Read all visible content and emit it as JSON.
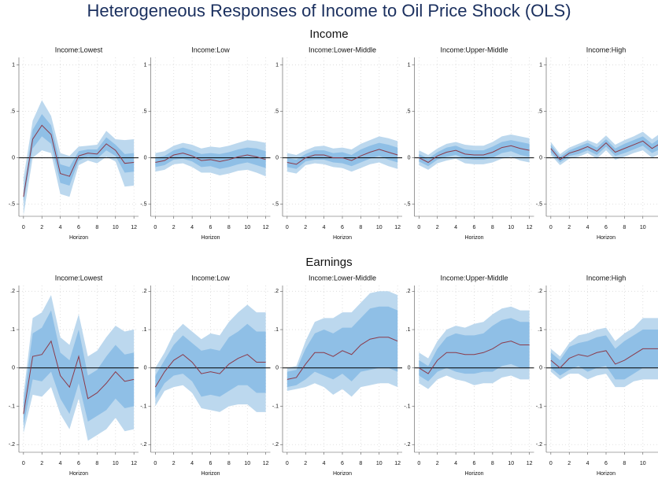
{
  "title": "Heterogeneous Responses of Income to Oil Price Shock (OLS)",
  "section_titles": [
    "Income",
    "Earnings"
  ],
  "colors": {
    "line": "#8b3a4a",
    "ci68": "#8fbfe6",
    "ci90": "#bcd8ee",
    "refline": "#000000"
  },
  "chart_data": [
    {
      "type": "line",
      "title": "Income:Lowest",
      "xlabel": "Horizon",
      "x": [
        0,
        1,
        2,
        3,
        4,
        5,
        6,
        7,
        8,
        9,
        10,
        11,
        12
      ],
      "xlim": [
        -0.5,
        12.5
      ],
      "xticks": [
        0,
        2,
        4,
        6,
        8,
        10,
        12
      ],
      "ylim": [
        -0.63,
        1.08
      ],
      "yticks": [
        {
          "value": -0.5,
          "label": "-.5"
        },
        0,
        {
          "value": 0.5,
          "label": ".5"
        },
        1
      ],
      "grid": true,
      "refline": 0,
      "series": [
        {
          "values": [
            -0.42,
            0.2,
            0.35,
            0.25,
            -0.17,
            -0.2,
            0.02,
            0.05,
            0.04,
            0.15,
            0.08,
            -0.06,
            -0.05
          ],
          "ci68": [
            0.06,
            0.1,
            0.12,
            0.1,
            0.1,
            0.1,
            0.05,
            0.04,
            0.05,
            0.07,
            0.06,
            0.1,
            0.1
          ],
          "ci90": [
            0.2,
            0.2,
            0.27,
            0.2,
            0.22,
            0.22,
            0.1,
            0.08,
            0.1,
            0.14,
            0.12,
            0.25,
            0.25
          ]
        }
      ]
    },
    {
      "type": "line",
      "title": "Income:Low",
      "xlabel": "Horizon",
      "x": [
        0,
        1,
        2,
        3,
        4,
        5,
        6,
        7,
        8,
        9,
        10,
        11,
        12
      ],
      "xlim": [
        -0.5,
        12.5
      ],
      "xticks": [
        0,
        2,
        4,
        6,
        8,
        10,
        12
      ],
      "ylim": [
        -0.63,
        1.08
      ],
      "yticks": [
        {
          "value": -0.5,
          "label": "-.5"
        },
        0,
        {
          "value": 0.5,
          "label": ".5"
        },
        1
      ],
      "grid": true,
      "refline": 0,
      "series": [
        {
          "values": [
            -0.05,
            -0.03,
            0.03,
            0.05,
            0.02,
            -0.03,
            -0.02,
            -0.04,
            -0.02,
            0.01,
            0.03,
            0.01,
            -0.02
          ],
          "ci68": [
            0.05,
            0.05,
            0.05,
            0.06,
            0.06,
            0.07,
            0.07,
            0.08,
            0.08,
            0.08,
            0.08,
            0.09,
            0.09
          ],
          "ci90": [
            0.1,
            0.1,
            0.1,
            0.11,
            0.12,
            0.13,
            0.14,
            0.15,
            0.15,
            0.15,
            0.16,
            0.17,
            0.18
          ]
        }
      ]
    },
    {
      "type": "line",
      "title": "Income:Lower-Middle",
      "xlabel": "Horizon",
      "x": [
        0,
        1,
        2,
        3,
        4,
        5,
        6,
        7,
        8,
        9,
        10,
        11,
        12
      ],
      "xlim": [
        -0.5,
        12.5
      ],
      "xticks": [
        0,
        2,
        4,
        6,
        8,
        10,
        12
      ],
      "ylim": [
        -0.63,
        1.08
      ],
      "yticks": [
        {
          "value": -0.5,
          "label": "-.5"
        },
        0,
        {
          "value": 0.5,
          "label": ".5"
        },
        1
      ],
      "grid": true,
      "refline": 0,
      "series": [
        {
          "values": [
            -0.05,
            -0.07,
            0,
            0.03,
            0.03,
            0,
            0,
            -0.03,
            0.02,
            0.06,
            0.09,
            0.06,
            0.03
          ],
          "ci68": [
            0.05,
            0.05,
            0.04,
            0.05,
            0.05,
            0.05,
            0.06,
            0.06,
            0.07,
            0.07,
            0.07,
            0.08,
            0.08
          ],
          "ci90": [
            0.1,
            0.1,
            0.08,
            0.09,
            0.1,
            0.1,
            0.11,
            0.12,
            0.13,
            0.13,
            0.14,
            0.15,
            0.15
          ]
        }
      ]
    },
    {
      "type": "line",
      "title": "Income:Upper-Middle",
      "xlabel": "Horizon",
      "x": [
        0,
        1,
        2,
        3,
        4,
        5,
        6,
        7,
        8,
        9,
        10,
        11,
        12
      ],
      "xlim": [
        -0.5,
        12.5
      ],
      "xticks": [
        0,
        2,
        4,
        6,
        8,
        10,
        12
      ],
      "ylim": [
        -0.63,
        1.08
      ],
      "yticks": [
        {
          "value": -0.5,
          "label": "-.5"
        },
        0,
        {
          "value": 0.5,
          "label": ".5"
        },
        1
      ],
      "grid": true,
      "refline": 0,
      "series": [
        {
          "values": [
            0,
            -0.05,
            0.02,
            0.06,
            0.08,
            0.04,
            0.03,
            0.03,
            0.06,
            0.11,
            0.13,
            0.1,
            0.08
          ],
          "ci68": [
            0.04,
            0.04,
            0.04,
            0.05,
            0.05,
            0.05,
            0.05,
            0.05,
            0.06,
            0.06,
            0.06,
            0.07,
            0.07
          ],
          "ci90": [
            0.08,
            0.08,
            0.08,
            0.09,
            0.09,
            0.1,
            0.1,
            0.1,
            0.11,
            0.12,
            0.12,
            0.13,
            0.13
          ]
        }
      ]
    },
    {
      "type": "line",
      "title": "Income:High",
      "xlabel": "Horizon",
      "x": [
        0,
        1,
        2,
        3,
        4,
        5,
        6,
        7,
        8,
        9,
        10,
        11,
        12
      ],
      "xlim": [
        -0.5,
        12.5
      ],
      "xticks": [
        0,
        2,
        4,
        6,
        8,
        10,
        12
      ],
      "ylim": [
        -0.63,
        1.08
      ],
      "yticks": [
        {
          "value": -0.5,
          "label": "-.5"
        },
        0,
        {
          "value": 0.5,
          "label": ".5"
        },
        1
      ],
      "grid": true,
      "refline": 0,
      "series": [
        {
          "values": [
            0.1,
            -0.02,
            0.05,
            0.08,
            0.12,
            0.07,
            0.16,
            0.06,
            0.1,
            0.14,
            0.18,
            0.1,
            0.16
          ],
          "ci68": [
            0.04,
            0.03,
            0.03,
            0.04,
            0.04,
            0.04,
            0.04,
            0.04,
            0.05,
            0.05,
            0.05,
            0.05,
            0.06
          ],
          "ci90": [
            0.07,
            0.06,
            0.06,
            0.07,
            0.07,
            0.08,
            0.08,
            0.08,
            0.09,
            0.09,
            0.1,
            0.1,
            0.11
          ]
        }
      ]
    },
    {
      "type": "line",
      "title": "Income:Lowest",
      "xlabel": "Horizon",
      "x": [
        0,
        1,
        2,
        3,
        4,
        5,
        6,
        7,
        8,
        9,
        10,
        11,
        12
      ],
      "xlim": [
        -0.5,
        12.5
      ],
      "xticks": [
        0,
        2,
        4,
        6,
        8,
        10,
        12
      ],
      "ylim": [
        -0.22,
        0.215
      ],
      "yticks": [
        {
          "value": -0.2,
          "label": "-.2"
        },
        {
          "value": -0.1,
          "label": "-.1"
        },
        0,
        {
          "value": 0.1,
          "label": ".1"
        },
        {
          "value": 0.2,
          "label": ".2"
        }
      ],
      "grid": true,
      "refline": 0,
      "series": [
        {
          "values": [
            -0.12,
            0.03,
            0.035,
            0.07,
            -0.02,
            -0.05,
            0.03,
            -0.08,
            -0.065,
            -0.04,
            -0.01,
            -0.035,
            -0.03
          ],
          "ci68": [
            0.03,
            0.06,
            0.07,
            0.08,
            0.06,
            0.07,
            0.07,
            0.06,
            0.06,
            0.07,
            0.07,
            0.07,
            0.07
          ],
          "ci90": [
            0.05,
            0.1,
            0.11,
            0.12,
            0.1,
            0.11,
            0.11,
            0.11,
            0.11,
            0.12,
            0.12,
            0.13,
            0.13
          ]
        }
      ]
    },
    {
      "type": "line",
      "title": "Income:Low",
      "xlabel": "Horizon",
      "x": [
        0,
        1,
        2,
        3,
        4,
        5,
        6,
        7,
        8,
        9,
        10,
        11,
        12
      ],
      "xlim": [
        -0.5,
        12.5
      ],
      "xticks": [
        0,
        2,
        4,
        6,
        8,
        10,
        12
      ],
      "ylim": [
        -0.22,
        0.215
      ],
      "yticks": [
        {
          "value": -0.2,
          "label": "-.2"
        },
        {
          "value": -0.1,
          "label": "-.1"
        },
        0,
        {
          "value": 0.1,
          "label": ".1"
        },
        {
          "value": 0.2,
          "label": ".2"
        }
      ],
      "grid": true,
      "refline": 0,
      "series": [
        {
          "values": [
            -0.05,
            -0.01,
            0.02,
            0.035,
            0.015,
            -0.015,
            -0.01,
            -0.015,
            0.01,
            0.025,
            0.035,
            0.015,
            0.015
          ],
          "ci68": [
            0.03,
            0.03,
            0.04,
            0.05,
            0.05,
            0.06,
            0.06,
            0.06,
            0.07,
            0.07,
            0.08,
            0.08,
            0.08
          ],
          "ci90": [
            0.05,
            0.05,
            0.07,
            0.08,
            0.08,
            0.09,
            0.1,
            0.1,
            0.11,
            0.12,
            0.13,
            0.13,
            0.13
          ]
        }
      ]
    },
    {
      "type": "line",
      "title": "Income:Lower-Middle",
      "xlabel": "Horizon",
      "x": [
        0,
        1,
        2,
        3,
        4,
        5,
        6,
        7,
        8,
        9,
        10,
        11,
        12
      ],
      "xlim": [
        -0.5,
        12.5
      ],
      "xticks": [
        0,
        2,
        4,
        6,
        8,
        10,
        12
      ],
      "ylim": [
        -0.22,
        0.215
      ],
      "yticks": [
        {
          "value": -0.2,
          "label": "-.2"
        },
        {
          "value": -0.1,
          "label": "-.1"
        },
        0,
        {
          "value": 0.1,
          "label": ".1"
        },
        {
          "value": 0.2,
          "label": ".2"
        }
      ],
      "grid": true,
      "refline": 0,
      "series": [
        {
          "values": [
            -0.03,
            -0.025,
            0.01,
            0.04,
            0.04,
            0.03,
            0.045,
            0.035,
            0.06,
            0.075,
            0.08,
            0.08,
            0.07
          ],
          "ci68": [
            0.02,
            0.02,
            0.04,
            0.05,
            0.06,
            0.06,
            0.06,
            0.07,
            0.07,
            0.08,
            0.08,
            0.08,
            0.08
          ],
          "ci90": [
            0.03,
            0.03,
            0.06,
            0.08,
            0.09,
            0.1,
            0.1,
            0.11,
            0.11,
            0.12,
            0.12,
            0.12,
            0.12
          ]
        }
      ]
    },
    {
      "type": "line",
      "title": "Income:Upper-Middle",
      "xlabel": "Horizon",
      "x": [
        0,
        1,
        2,
        3,
        4,
        5,
        6,
        7,
        8,
        9,
        10,
        11,
        12
      ],
      "xlim": [
        -0.5,
        12.5
      ],
      "xticks": [
        0,
        2,
        4,
        6,
        8,
        10,
        12
      ],
      "ylim": [
        -0.22,
        0.215
      ],
      "yticks": [
        {
          "value": -0.2,
          "label": "-.2"
        },
        {
          "value": -0.1,
          "label": "-.1"
        },
        0,
        {
          "value": 0.1,
          "label": ".1"
        },
        {
          "value": 0.2,
          "label": ".2"
        }
      ],
      "grid": true,
      "refline": 0,
      "series": [
        {
          "values": [
            0,
            -0.015,
            0.02,
            0.04,
            0.04,
            0.035,
            0.035,
            0.04,
            0.05,
            0.065,
            0.07,
            0.06,
            0.06
          ],
          "ci68": [
            0.02,
            0.02,
            0.03,
            0.04,
            0.05,
            0.05,
            0.05,
            0.05,
            0.06,
            0.06,
            0.06,
            0.06,
            0.06
          ],
          "ci90": [
            0.04,
            0.04,
            0.05,
            0.06,
            0.07,
            0.07,
            0.08,
            0.08,
            0.09,
            0.09,
            0.09,
            0.09,
            0.09
          ]
        }
      ]
    },
    {
      "type": "line",
      "title": "Income:High",
      "xlabel": "Horizon",
      "x": [
        0,
        1,
        2,
        3,
        4,
        5,
        6,
        7,
        8,
        9,
        10,
        11,
        12
      ],
      "xlim": [
        -0.5,
        12.5
      ],
      "xticks": [
        0,
        2,
        4,
        6,
        8,
        10,
        12
      ],
      "ylim": [
        -0.22,
        0.215
      ],
      "yticks": [
        {
          "value": -0.2,
          "label": "-.2"
        },
        {
          "value": -0.1,
          "label": "-.1"
        },
        0,
        {
          "value": 0.1,
          "label": ".1"
        },
        {
          "value": 0.2,
          "label": ".2"
        }
      ],
      "grid": true,
      "refline": 0,
      "series": [
        {
          "values": [
            0.02,
            0,
            0.025,
            0.035,
            0.03,
            0.04,
            0.045,
            0.01,
            0.02,
            0.035,
            0.05,
            0.05,
            0.05
          ],
          "ci68": [
            0.02,
            0.02,
            0.03,
            0.03,
            0.04,
            0.04,
            0.04,
            0.04,
            0.05,
            0.05,
            0.05,
            0.05,
            0.05
          ],
          "ci90": [
            0.03,
            0.03,
            0.04,
            0.05,
            0.06,
            0.06,
            0.06,
            0.06,
            0.07,
            0.07,
            0.08,
            0.08,
            0.08
          ]
        }
      ]
    }
  ]
}
